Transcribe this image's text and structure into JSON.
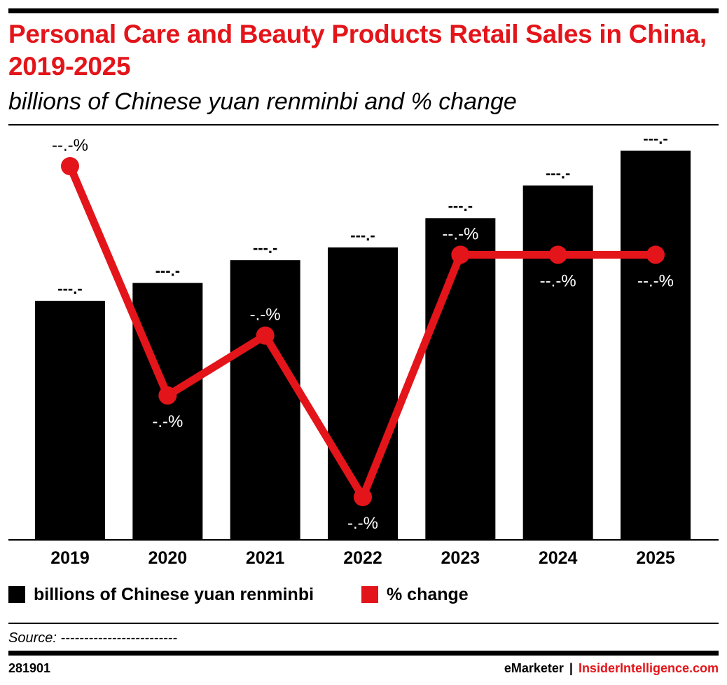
{
  "colors": {
    "accent": "#e3151a",
    "bar": "#000000",
    "text": "#000000"
  },
  "chart_data": {
    "type": "bar",
    "title": "Personal Care and Beauty Products Retail Sales in China, 2019-2025",
    "subtitle": "billions of Chinese yuan renminbi and % change",
    "categories": [
      "2019",
      "2020",
      "2021",
      "2022",
      "2023",
      "2024",
      "2025"
    ],
    "series": [
      {
        "name": "billions of Chinese yuan renminbi",
        "kind": "bar",
        "color": "#000000",
        "values": [
          335,
          360,
          392,
          410,
          451,
          497,
          546
        ],
        "labels": [
          "---.-",
          "---.-",
          "---.-",
          "---.-",
          "---.-",
          "---.-",
          "---.-"
        ]
      },
      {
        "name": "% change",
        "kind": "line",
        "color": "#e3151a",
        "values": [
          12.6,
          3.8,
          6.1,
          -0.1,
          9.2,
          9.2,
          9.2
        ],
        "labels": [
          "--.-%",
          "-.-%",
          "-.-%",
          "-.-%",
          "--.-%",
          "--.-%",
          "--.-%"
        ],
        "label_position": [
          "above",
          "below",
          "above",
          "below",
          "above",
          "below",
          "below"
        ]
      }
    ],
    "ylim_bars": [
      0,
      600
    ],
    "ylim_line": [
      -0.7,
      13.9
    ],
    "grid": false,
    "legend_position": "bottom-left"
  },
  "legend": [
    {
      "label": "billions of Chinese yuan renminbi",
      "color": "#000000"
    },
    {
      "label": "% change",
      "color": "#e3151a"
    }
  ],
  "footer": {
    "source": "Source: -------------------------",
    "chart_id": "281901",
    "brand_left": "eMarketer",
    "brand_sep": "|",
    "brand_right": "InsiderIntelligence.com"
  }
}
